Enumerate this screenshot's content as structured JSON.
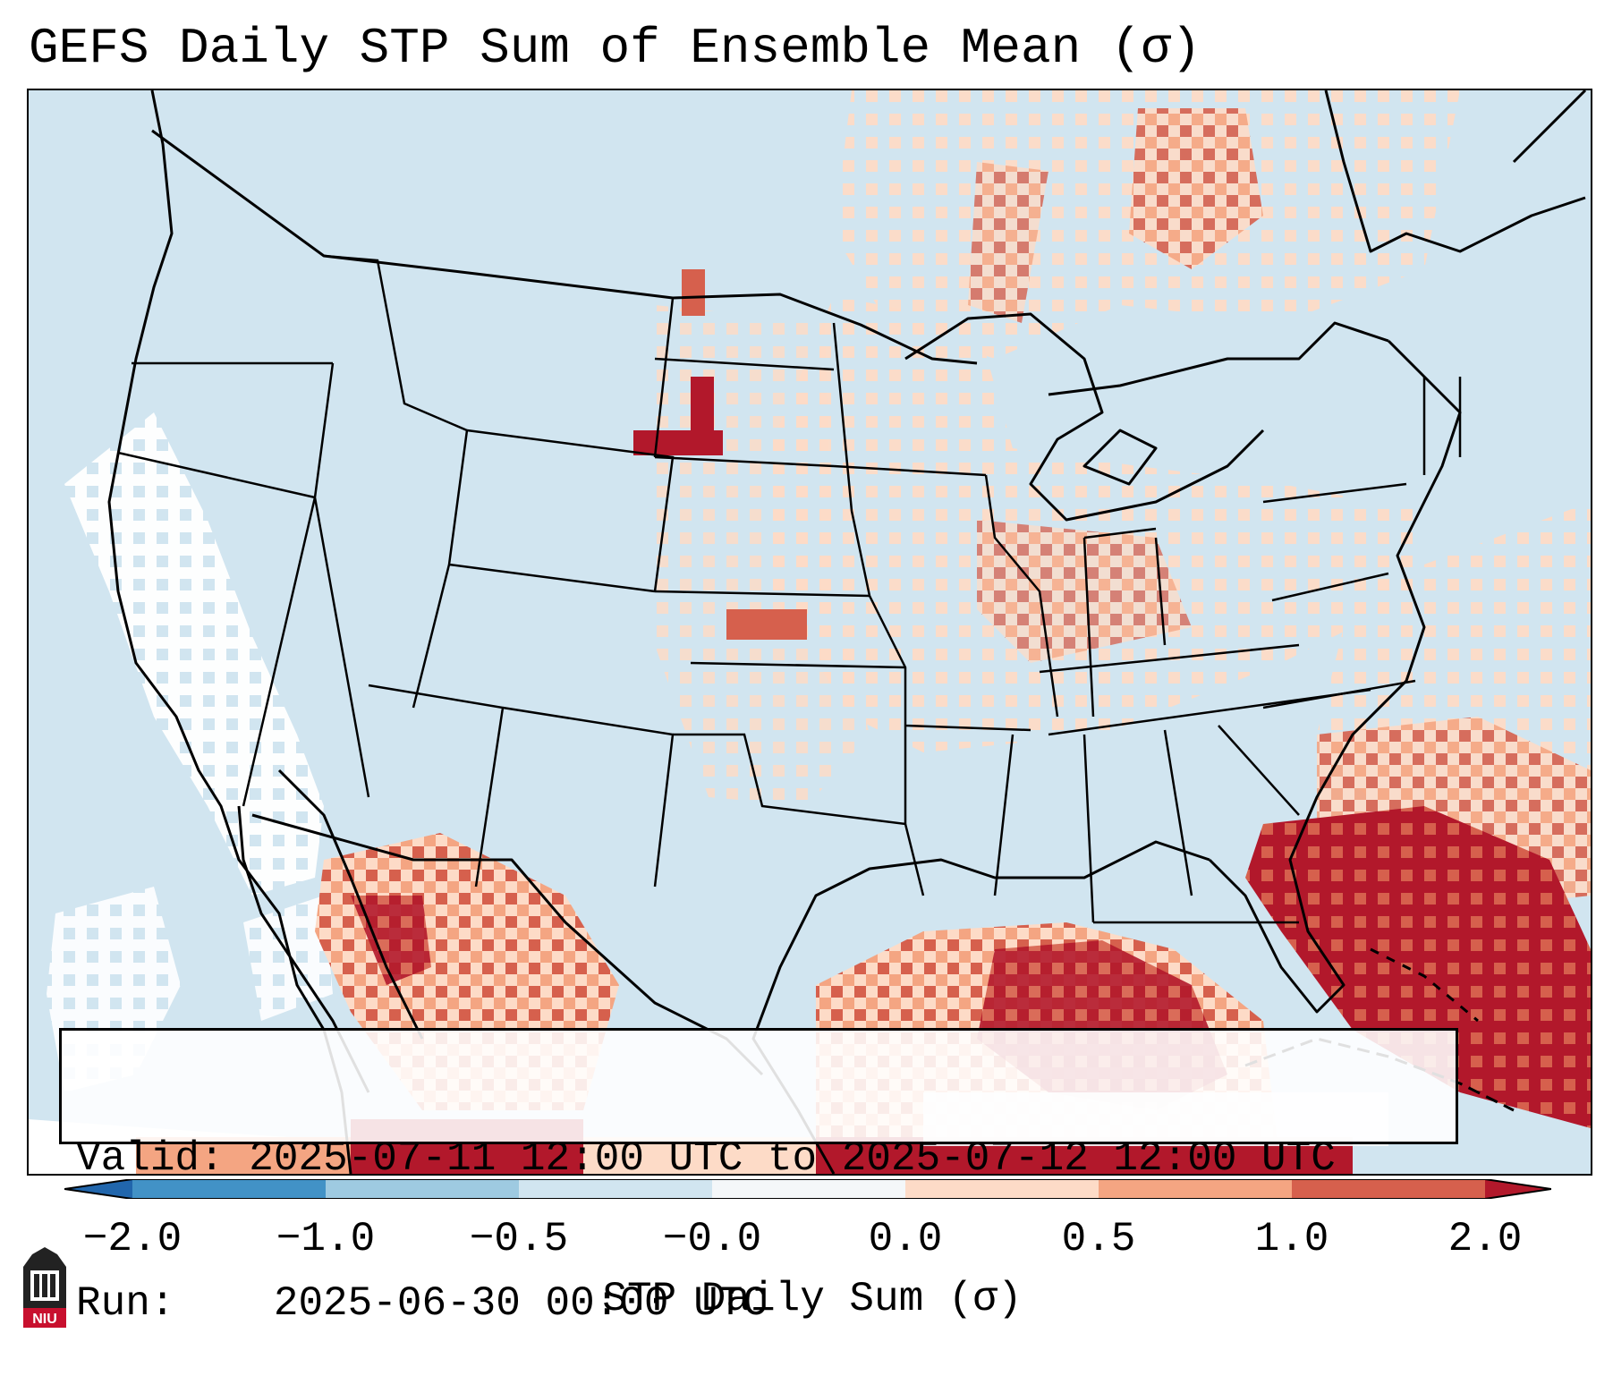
{
  "title": "GEFS Daily STP Sum of Ensemble Mean (σ)",
  "info": {
    "valid_label": "Valid:",
    "valid_value": "2025-07-11 12:00 UTC to 2025-07-12 12:00 UTC",
    "run_label": "Run:",
    "run_value": "2025-06-30 00:00 UTC"
  },
  "colorbar": {
    "label": "STP Daily Sum (σ)",
    "ticks": [
      "−2.0",
      "−1.0",
      "−0.5",
      "−0.0",
      "0.0",
      "0.5",
      "1.0",
      "2.0"
    ],
    "bin_colors": [
      "#4292c6",
      "#9ecae1",
      "#d1e5f0",
      "#f4f7f9",
      "#fddbc7",
      "#f4a582",
      "#d6604d",
      "#b2182b"
    ],
    "under_color": "#2166ac",
    "over_color": "#b2182b",
    "ocean_color": "#d1e5f0",
    "land_color": "#d1e5f0",
    "border_color": "#000000"
  },
  "map": {
    "region": "Continental United States",
    "field": "STP daily sum anomaly",
    "high_anomaly_regions": [
      "Florida",
      "Gulf of Mexico",
      "Western Atlantic",
      "Northern Mexico",
      "Western Nebraska"
    ]
  },
  "logo": {
    "text": "NIU",
    "name": "Northern Illinois University"
  }
}
